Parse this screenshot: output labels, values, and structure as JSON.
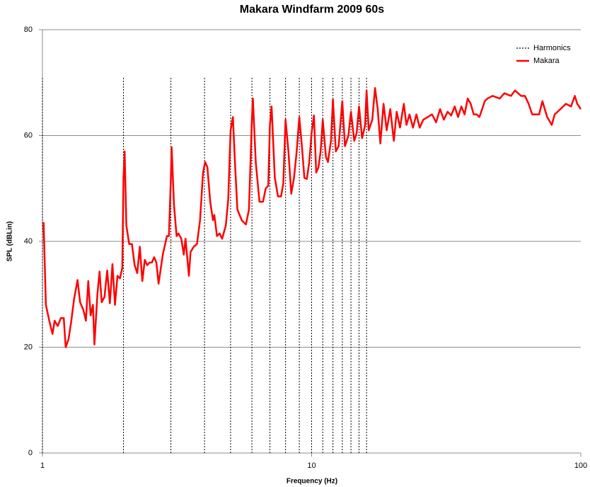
{
  "chart_data": {
    "type": "line",
    "title": "Makara Windfarm 2009 60s",
    "x_label": "Frequency (Hz)",
    "y_label": "SPL (dBLin)",
    "xlim": [
      1,
      100
    ],
    "xticks": [
      1,
      10,
      100
    ],
    "x_log": true,
    "ylim": [
      0,
      80
    ],
    "yticks": [
      0,
      20,
      40,
      60,
      80
    ],
    "grid": true,
    "legend": "top-right",
    "series": [
      {
        "name": "Harmonics",
        "color": "#000000",
        "style": "vlines",
        "x": [
          1,
          2,
          3,
          4,
          5,
          6,
          7,
          8,
          9,
          10,
          11,
          12,
          13,
          14,
          15,
          16
        ],
        "values": [
          71,
          71,
          71,
          71,
          71,
          71,
          71,
          71,
          71,
          71,
          71,
          71,
          71,
          71,
          71,
          71
        ]
      },
      {
        "name": "Makara",
        "color": "#ff0000",
        "style": "solid",
        "x": [
          1,
          1.01,
          1.03,
          1.06,
          1.09,
          1.11,
          1.14,
          1.17,
          1.2,
          1.22,
          1.25,
          1.28,
          1.31,
          1.35,
          1.38,
          1.42,
          1.45,
          1.48,
          1.51,
          1.54,
          1.56,
          1.6,
          1.63,
          1.66,
          1.7,
          1.74,
          1.78,
          1.82,
          1.86,
          1.9,
          1.94,
          1.98,
          2.0,
          2.02,
          2.05,
          2.1,
          2.15,
          2.2,
          2.25,
          2.3,
          2.35,
          2.4,
          2.45,
          2.5,
          2.55,
          2.6,
          2.65,
          2.7,
          2.8,
          2.9,
          2.95,
          3.0,
          3.02,
          3.08,
          3.15,
          3.2,
          3.28,
          3.35,
          3.4,
          3.5,
          3.55,
          3.65,
          3.75,
          3.85,
          3.95,
          4.02,
          4.1,
          4.2,
          4.3,
          4.35,
          4.45,
          4.55,
          4.65,
          4.8,
          4.9,
          5.0,
          5.1,
          5.2,
          5.3,
          5.5,
          5.7,
          5.85,
          6.0,
          6.05,
          6.2,
          6.4,
          6.6,
          6.75,
          6.9,
          7.0,
          7.1,
          7.3,
          7.5,
          7.7,
          7.85,
          8.0,
          8.2,
          8.4,
          8.6,
          8.8,
          9.0,
          9.2,
          9.4,
          9.6,
          9.8,
          10.0,
          10.2,
          10.4,
          10.6,
          10.8,
          11.0,
          11.3,
          11.5,
          11.8,
          12.0,
          12.3,
          12.6,
          13.0,
          13.3,
          13.7,
          14.0,
          14.4,
          14.7,
          15.0,
          15.4,
          15.8,
          16.0,
          16.3,
          16.8,
          17.2,
          17.6,
          18.0,
          18.5,
          19.0,
          19.6,
          20.2,
          20.7,
          21.3,
          22,
          22.5,
          23.1,
          23.8,
          24.5,
          25.2,
          26,
          27,
          28,
          29,
          30,
          31,
          32,
          33,
          34,
          35,
          36,
          37,
          38,
          39,
          40,
          41,
          42,
          43,
          44,
          45,
          47,
          50,
          52,
          55,
          57,
          60,
          62,
          64,
          66,
          70,
          72,
          75,
          78,
          80,
          84,
          88,
          92,
          95,
          97,
          100
        ],
        "values": [
          43.5,
          43.5,
          28,
          25,
          22.5,
          25,
          24,
          25.5,
          25.5,
          20,
          21.5,
          25,
          29,
          32.7,
          28.5,
          27,
          25,
          32.5,
          26,
          28,
          20.5,
          30,
          34.3,
          28.5,
          29.5,
          34.5,
          28.3,
          35.7,
          28,
          33.5,
          33,
          35,
          52,
          57,
          43,
          39.5,
          39.5,
          35.5,
          34,
          39,
          32.5,
          36.5,
          35.5,
          36,
          36,
          37,
          36,
          32,
          37.5,
          41,
          41,
          52,
          57.8,
          47,
          41,
          41.5,
          40.5,
          37.5,
          40.5,
          33.5,
          38,
          39,
          39.5,
          44,
          53,
          55,
          54,
          47.5,
          44,
          45,
          41,
          41.5,
          40.5,
          43,
          48,
          61,
          63.5,
          54,
          46,
          44,
          43.2,
          46,
          63,
          67,
          55,
          47.5,
          47.5,
          50,
          50.5,
          62,
          65.5,
          52,
          48.5,
          48.5,
          51,
          63,
          57,
          49,
          52,
          57,
          63.5,
          58,
          52,
          51.8,
          55,
          60.5,
          63.8,
          53,
          54,
          57,
          63,
          56,
          55,
          59,
          66.8,
          57,
          58,
          66.5,
          58,
          60,
          64.5,
          59,
          60.5,
          65.5,
          59.5,
          62,
          68.5,
          61,
          63,
          69,
          65,
          58.5,
          66,
          61,
          65,
          59,
          64.5,
          61.5,
          66,
          62,
          64,
          61.5,
          64,
          61.5,
          63,
          63.5,
          64,
          62.5,
          65,
          63,
          64.5,
          63.8,
          65.5,
          63.5,
          65.5,
          64,
          67,
          66,
          64,
          64,
          63.5,
          65,
          66.5,
          67,
          67.5,
          67,
          68,
          67.5,
          68.5,
          67.5,
          67.5,
          66,
          64,
          64,
          66.5,
          63.5,
          62,
          64,
          65,
          66,
          65.5,
          67.5,
          66,
          65
        ]
      }
    ]
  }
}
